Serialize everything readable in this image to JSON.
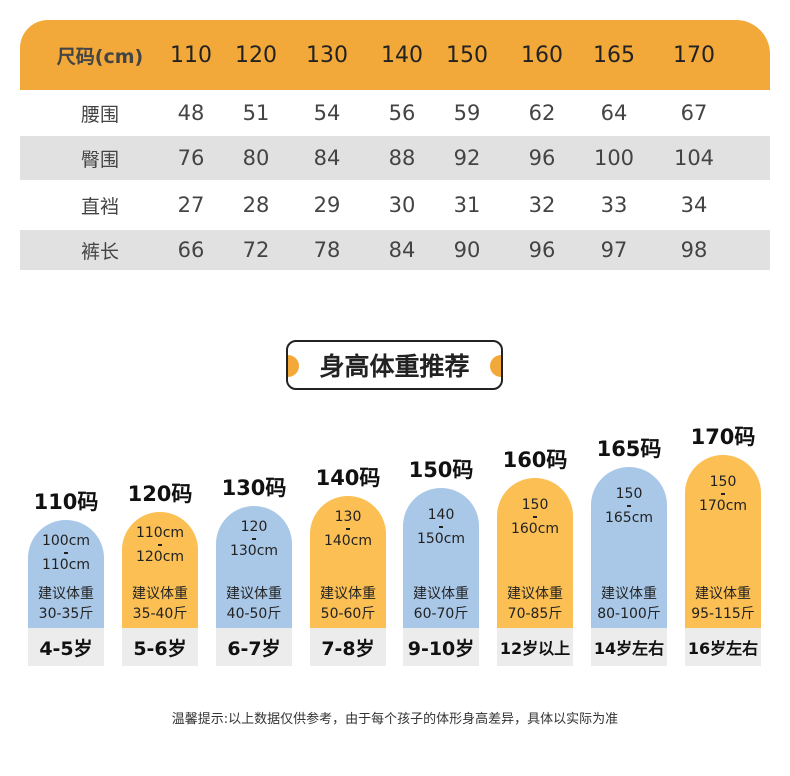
{
  "colors": {
    "header": "#f3a93a",
    "orange_card": "#fbbf53",
    "blue_card": "#a9c8e8",
    "row_gray": "#e1e1e1"
  },
  "table": {
    "header": [
      "尺码(cm)",
      "110",
      "120",
      "130",
      "140",
      "150",
      "160",
      "165",
      "170"
    ],
    "rows": [
      [
        "腰围",
        "48",
        "51",
        "54",
        "56",
        "59",
        "62",
        "64",
        "67"
      ],
      [
        "臀围",
        "76",
        "80",
        "84",
        "88",
        "92",
        "96",
        "100",
        "104"
      ],
      [
        "直裆",
        "27",
        "28",
        "29",
        "30",
        "31",
        "32",
        "33",
        "34"
      ],
      [
        "裤长",
        "66",
        "72",
        "78",
        "84",
        "90",
        "96",
        "97",
        "98"
      ]
    ]
  },
  "section_title": "身高体重推荐",
  "cards": [
    {
      "size": "110码",
      "height_from": "100cm",
      "height_to": "110cm",
      "weight_label": "建议体重",
      "weight": "30-35斤",
      "age": "4-5岁",
      "color": "blue"
    },
    {
      "size": "120码",
      "height_from": "110cm",
      "height_to": "120cm",
      "weight_label": "建议体重",
      "weight": "35-40斤",
      "age": "5-6岁",
      "color": "orange"
    },
    {
      "size": "130码",
      "height_from": "120",
      "height_to": "130cm",
      "weight_label": "建议体重",
      "weight": "40-50斤",
      "age": "6-7岁",
      "color": "blue"
    },
    {
      "size": "140码",
      "height_from": "130",
      "height_to": "140cm",
      "weight_label": "建议体重",
      "weight": "50-60斤",
      "age": "7-8岁",
      "color": "orange"
    },
    {
      "size": "150码",
      "height_from": "140",
      "height_to": "150cm",
      "weight_label": "建议体重",
      "weight": "60-70斤",
      "age": "9-10岁",
      "color": "blue"
    },
    {
      "size": "160码",
      "height_from": "150",
      "height_to": "160cm",
      "weight_label": "建议体重",
      "weight": "70-85斤",
      "age": "12岁以上",
      "color": "orange"
    },
    {
      "size": "165码",
      "height_from": "150",
      "height_to": "165cm",
      "weight_label": "建议体重",
      "weight": "80-100斤",
      "age": "14岁左右",
      "color": "blue"
    },
    {
      "size": "170码",
      "height_from": "150",
      "height_to": "170cm",
      "weight_label": "建议体重",
      "weight": "95-115斤",
      "age": "16岁左右",
      "color": "orange"
    }
  ],
  "footer": "温馨提示:以上数据仅供参考，由于每个孩子的体形身高差异，具体以实际为准"
}
